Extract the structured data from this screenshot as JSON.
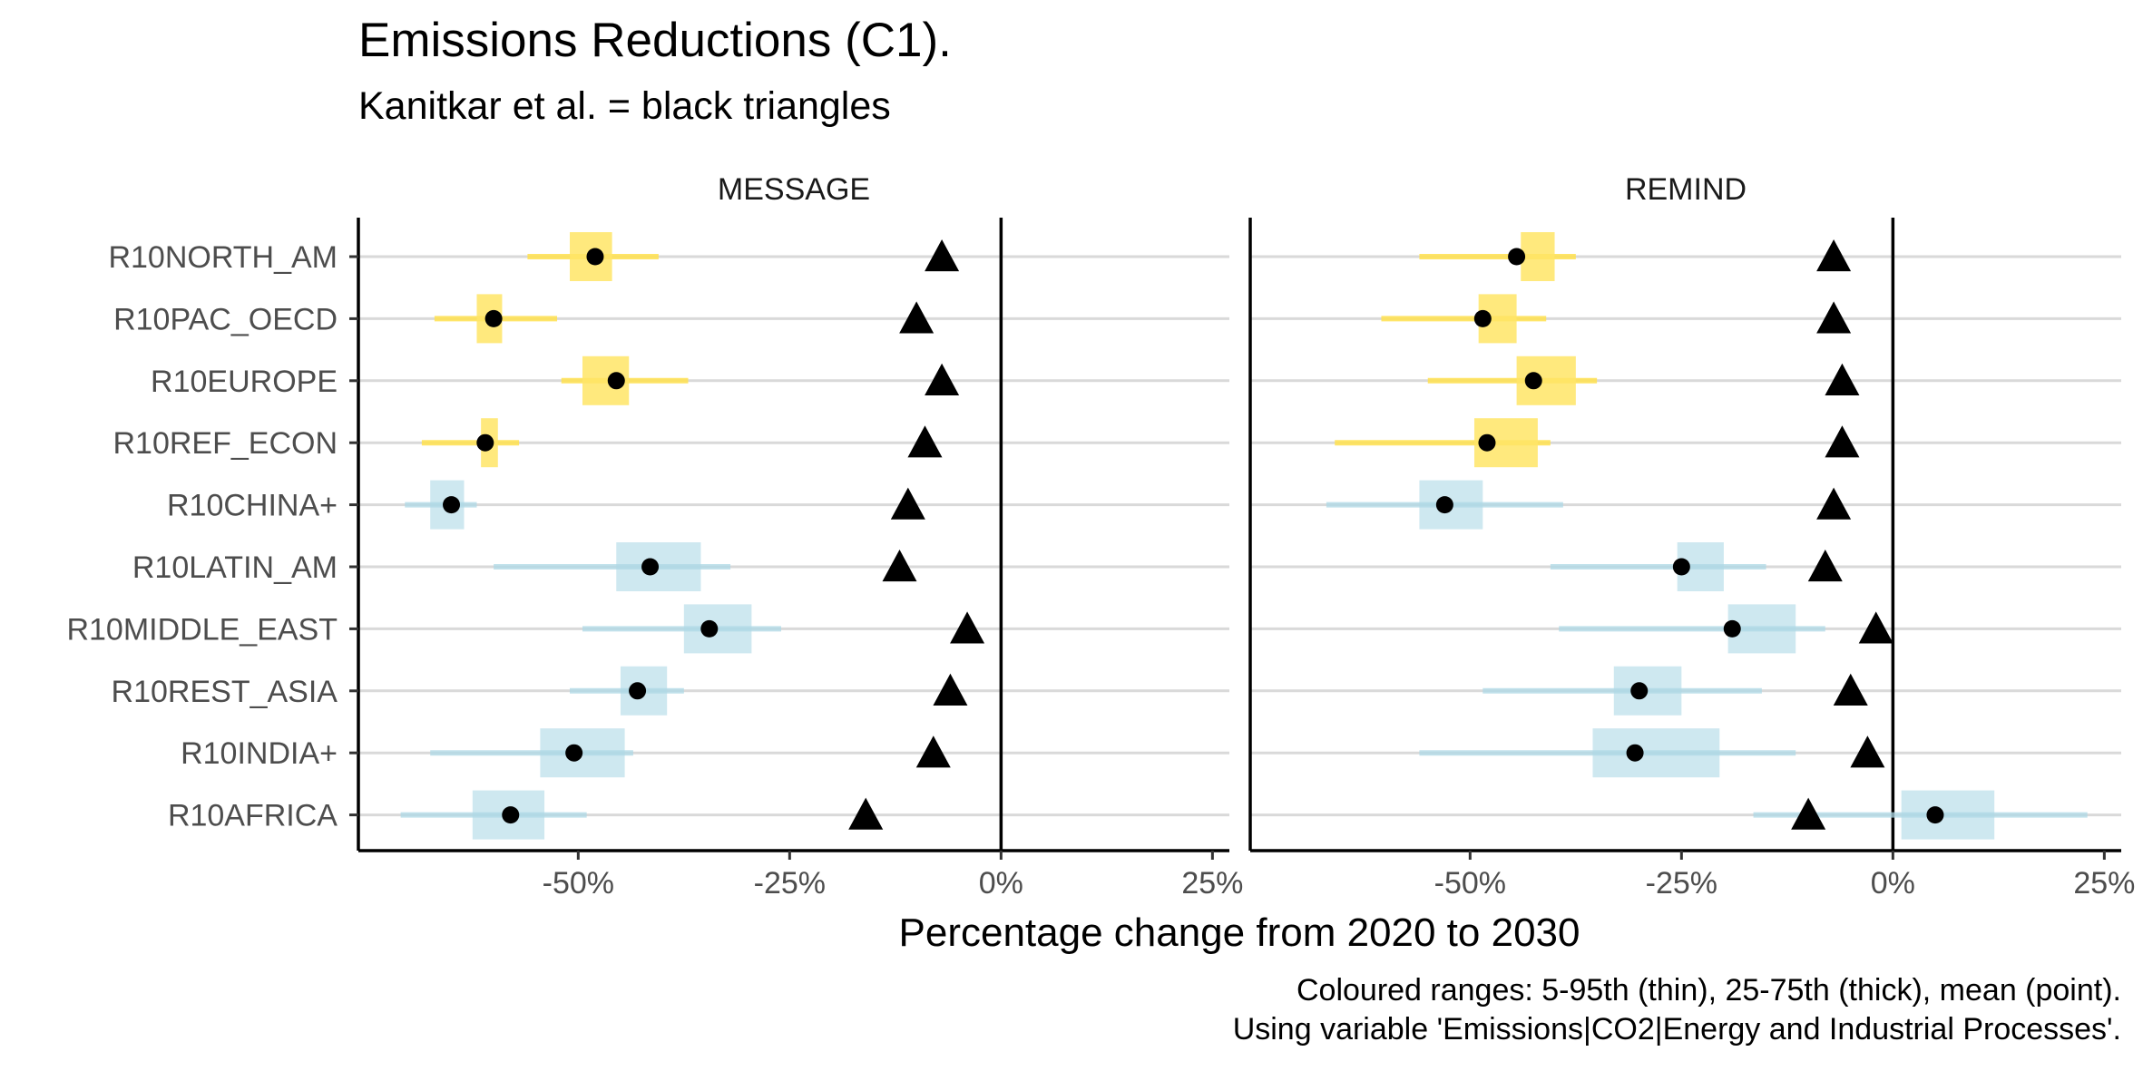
{
  "chart_data": {
    "type": "range-dot",
    "title": "Emissions Reductions (C1).",
    "subtitle": "Kanitkar et al. = black triangles",
    "xlabel": "Percentage change from 2020 to 2030",
    "caption": [
      "Coloured ranges: 5-95th (thin), 25-75th (thick), mean (point).",
      "Using variable 'Emissions|CO2|Energy and Industrial Processes'."
    ],
    "xlim": [
      -76,
      27
    ],
    "x_ticks": [
      -50,
      -25,
      0,
      25
    ],
    "x_tick_labels": [
      "-50%",
      "-25%",
      "0%",
      "25%"
    ],
    "grid": "horizontal major only",
    "colors": {
      "developed": "#FFE14D",
      "developed_thick": "#FFE566",
      "developing": "#ADD8E6",
      "mean": "#000000",
      "kanitkar": "#000000",
      "zero_line": "#000000",
      "grid": "#D9D9D9"
    },
    "regions": [
      "R10NORTH_AM",
      "R10PAC_OECD",
      "R10EUROPE",
      "R10REF_ECON",
      "R10CHINA+",
      "R10LATIN_AM",
      "R10MIDDLE_EAST",
      "R10REST_ASIA",
      "R10INDIA+",
      "R10AFRICA"
    ],
    "region_group": [
      "developed",
      "developed",
      "developed",
      "developed",
      "developing",
      "developing",
      "developing",
      "developing",
      "developing",
      "developing"
    ],
    "panels": [
      {
        "name": "MESSAGE",
        "p5": [
          -56,
          -67,
          -52,
          -68.5,
          -70.5,
          -60,
          -49.5,
          -51,
          -67.5,
          -71
        ],
        "p25": [
          -51,
          -62,
          -49.5,
          -61.5,
          -67.5,
          -45.5,
          -37.5,
          -45,
          -54.5,
          -62.5
        ],
        "p75": [
          -46,
          -59,
          -44,
          -59.5,
          -63.5,
          -35.5,
          -29.5,
          -39.5,
          -44.5,
          -54
        ],
        "p95": [
          -40.5,
          -52.5,
          -37,
          -57,
          -62,
          -32,
          -26,
          -37.5,
          -43.5,
          -49
        ],
        "mean": [
          -48,
          -60,
          -45.5,
          -61,
          -65,
          -41.5,
          -34.5,
          -43,
          -50.5,
          -58
        ],
        "kanitkar": [
          -7,
          -10,
          -7,
          -9,
          -11,
          -12,
          -4,
          -6,
          -8,
          -16
        ]
      },
      {
        "name": "REMIND",
        "p5": [
          -56,
          -60.5,
          -55,
          -66,
          -67,
          -40.5,
          -39.5,
          -48.5,
          -56,
          -16.5
        ],
        "p25": [
          -44,
          -49,
          -44.5,
          -49.5,
          -56,
          -25.5,
          -19.5,
          -33,
          -35.5,
          1
        ],
        "p75": [
          -40,
          -44.5,
          -37.5,
          -42,
          -48.5,
          -20,
          -11.5,
          -25,
          -20.5,
          12
        ],
        "p95": [
          -37.5,
          -41,
          -35,
          -40.5,
          -39,
          -15,
          -8,
          -15.5,
          -11.5,
          23
        ],
        "mean": [
          -44.5,
          -48.5,
          -42.5,
          -48,
          -53,
          -25,
          -19,
          -30,
          -30.5,
          5
        ],
        "kanitkar": [
          -7,
          -7,
          -6,
          -6,
          -7,
          -8,
          -2,
          -5,
          -3,
          -10
        ]
      }
    ]
  }
}
